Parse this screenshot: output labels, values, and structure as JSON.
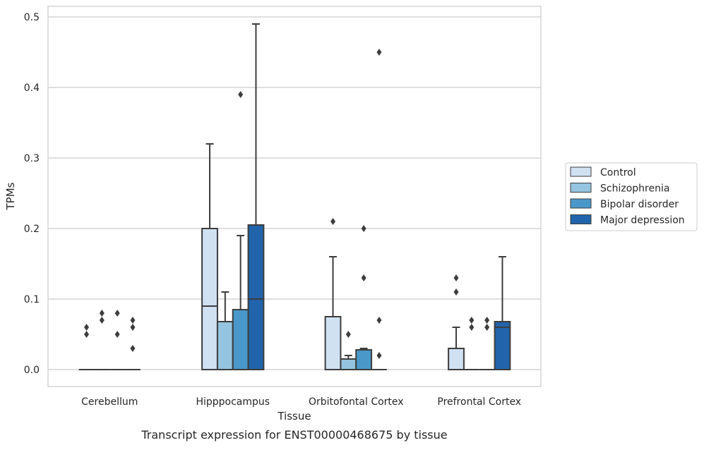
{
  "chart_data": {
    "type": "box",
    "caption": "Transcript expression for ENST00000468675 by tissue",
    "xlabel": "Tissue",
    "ylabel": "TPMs",
    "ylim": [
      -0.024,
      0.515
    ],
    "yticks": [
      0.0,
      0.1,
      0.2,
      0.3,
      0.4,
      0.5
    ],
    "ytick_labels": [
      "0.0",
      "0.1",
      "0.2",
      "0.3",
      "0.4",
      "0.5"
    ],
    "categories": [
      "Cerebellum",
      "Hipppocampus",
      "Orbitofontal Cortex",
      "Prefrontal Cortex"
    ],
    "grid": "horizontal",
    "legend_position": "right",
    "series": [
      {
        "name": "Control",
        "color": "#d0e1f2",
        "boxes": [
          {
            "q1": 0,
            "median": 0,
            "q3": 0,
            "whisker_low": 0,
            "whisker_high": 0,
            "outliers": [
              0.05,
              0.06
            ]
          },
          {
            "q1": 0,
            "median": 0.09,
            "q3": 0.2,
            "whisker_low": 0,
            "whisker_high": 0.32,
            "outliers": []
          },
          {
            "q1": 0,
            "median": 0,
            "q3": 0.075,
            "whisker_low": 0,
            "whisker_high": 0.16,
            "outliers": [
              0.21
            ]
          },
          {
            "q1": 0,
            "median": 0,
            "q3": 0.03,
            "whisker_low": 0,
            "whisker_high": 0.06,
            "outliers": [
              0.11,
              0.13
            ]
          }
        ]
      },
      {
        "name": "Schizophrenia",
        "color": "#94c4df",
        "boxes": [
          {
            "q1": 0,
            "median": 0,
            "q3": 0,
            "whisker_low": 0,
            "whisker_high": 0,
            "outliers": [
              0.07,
              0.08
            ]
          },
          {
            "q1": 0,
            "median": 0.068,
            "q3": 0.068,
            "whisker_low": 0,
            "whisker_high": 0.11,
            "outliers": []
          },
          {
            "q1": 0,
            "median": 0.015,
            "q3": 0.015,
            "whisker_low": 0,
            "whisker_high": 0.02,
            "outliers": [
              0.05
            ]
          },
          {
            "q1": 0,
            "median": 0,
            "q3": 0,
            "whisker_low": 0,
            "whisker_high": 0,
            "outliers": [
              0.06,
              0.07
            ]
          }
        ]
      },
      {
        "name": "Bipolar disorder",
        "color": "#4a98c9",
        "boxes": [
          {
            "q1": 0,
            "median": 0,
            "q3": 0,
            "whisker_low": 0,
            "whisker_high": 0,
            "outliers": [
              0.05,
              0.08
            ]
          },
          {
            "q1": 0,
            "median": 0.085,
            "q3": 0.085,
            "whisker_low": 0,
            "whisker_high": 0.19,
            "outliers": [
              0.39
            ]
          },
          {
            "q1": 0,
            "median": 0.028,
            "q3": 0.028,
            "whisker_low": 0,
            "whisker_high": 0.03,
            "outliers": [
              0.13,
              0.2
            ]
          },
          {
            "q1": 0,
            "median": 0,
            "q3": 0,
            "whisker_low": 0,
            "whisker_high": 0,
            "outliers": [
              0.06,
              0.07
            ]
          }
        ]
      },
      {
        "name": "Major depression",
        "color": "#2164ab",
        "boxes": [
          {
            "q1": 0,
            "median": 0,
            "q3": 0,
            "whisker_low": 0,
            "whisker_high": 0,
            "outliers": [
              0.03,
              0.06,
              0.07
            ]
          },
          {
            "q1": 0,
            "median": 0.1,
            "q3": 0.205,
            "whisker_low": 0,
            "whisker_high": 0.49,
            "outliers": []
          },
          {
            "q1": 0,
            "median": 0,
            "q3": 0,
            "whisker_low": 0,
            "whisker_high": 0,
            "outliers": [
              0.02,
              0.07,
              0.45
            ]
          },
          {
            "q1": 0,
            "median": 0.06,
            "q3": 0.068,
            "whisker_low": 0,
            "whisker_high": 0.16,
            "outliers": []
          }
        ]
      }
    ]
  }
}
